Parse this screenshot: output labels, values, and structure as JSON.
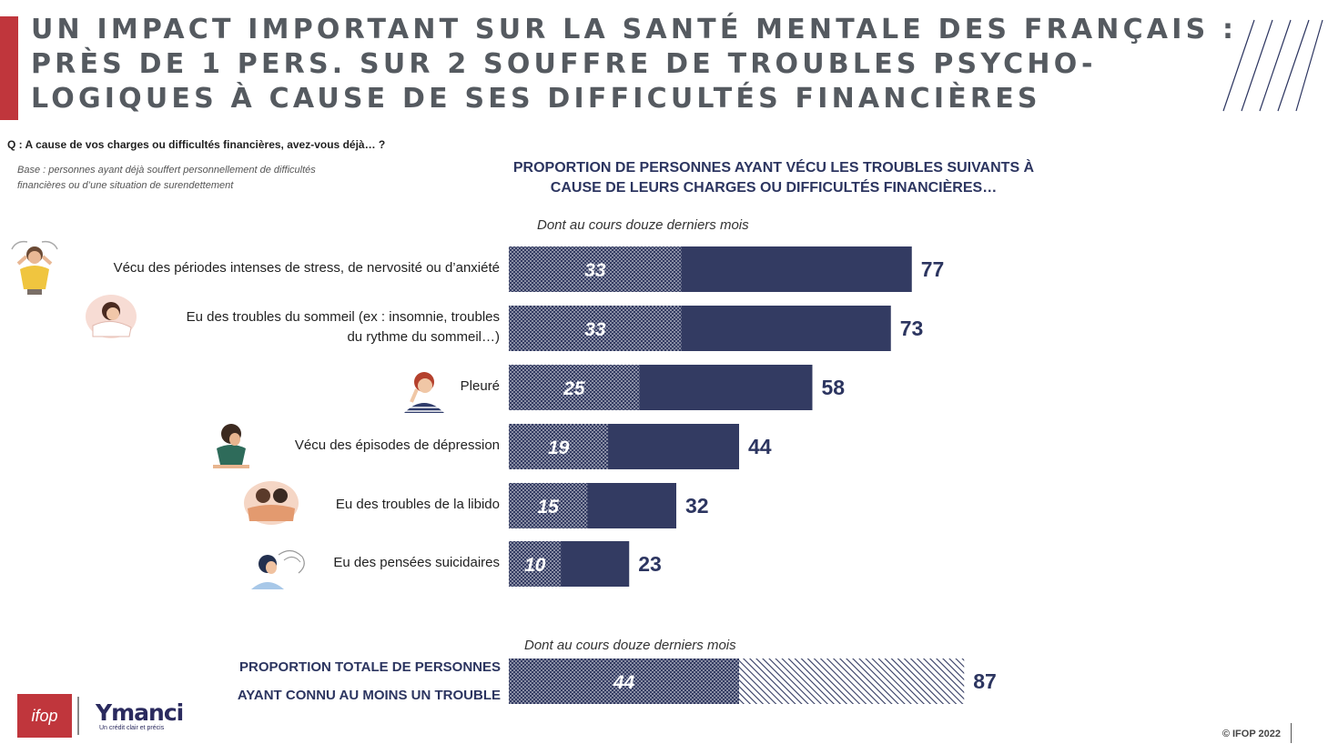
{
  "title": {
    "lines": [
      "UN IMPACT IMPORTANT SUR LA SANTÉ MENTALE DES FRANÇAIS :",
      "PRÈS DE 1 PERS. SUR 2 SOUFFRE DE TROUBLES PSYCHO-",
      "LOGIQUES À CAUSE DE SES DIFFICULTÉS FINANCIÈRES"
    ]
  },
  "question": "Q : A cause de vos charges ou difficultés financières, avez-vous déjà… ?",
  "base": {
    "line1": "Base : personnes ayant déjà souffert personnellement de difficultés",
    "line2": "financières ou d’une situation de surendettement"
  },
  "sub_label_top": "Dont au cours douze derniers mois",
  "sub_label_bottom": "Dont au cours douze derniers mois",
  "total_label": {
    "line1": "PROPORTION TOTALE DE PERSONNES",
    "line2": "AYANT CONNU AU MOINS UN TROUBLE"
  },
  "logos": {
    "ifop": "ifop",
    "ymanci": "Ymanci",
    "ymanci_tagline": "Un crédit clair et précis"
  },
  "copyright": "© IFOP 2022",
  "colors": {
    "bar": "#333b62",
    "accent_red": "#c0363c",
    "title_gray": "#555a60",
    "dark_navy": "#2c3560"
  },
  "chart_data": {
    "type": "bar",
    "orientation": "horizontal",
    "title_lines": [
      "PROPORTION DE PERSONNES AYANT VÉCU LES TROUBLES SUIVANTS À",
      "CAUSE DE LEURS CHARGES OU DIFFICULTÉS FINANCIÈRES…"
    ],
    "categories": [
      {
        "lines": [
          "Vécu des périodes intenses de stress, de nervosité ou d’anxiété"
        ],
        "icon": "stressed-person-icon"
      },
      {
        "lines": [
          "Eu des troubles du sommeil (ex : insomnie, troubles",
          "du rythme du sommeil…)"
        ],
        "icon": "sleeping-person-icon"
      },
      {
        "lines": [
          "Pleuré"
        ],
        "icon": "crying-person-icon"
      },
      {
        "lines": [
          "Vécu des épisodes de dépression"
        ],
        "icon": "depressed-person-icon"
      },
      {
        "lines": [
          "Eu des troubles de la libido"
        ],
        "icon": "couple-in-bed-icon"
      },
      {
        "lines": [
          "Eu des pensées suicidaires"
        ],
        "icon": "troubled-thoughts-icon"
      }
    ],
    "series": [
      {
        "name": "Total",
        "values": [
          77,
          73,
          58,
          44,
          32,
          23
        ]
      },
      {
        "name": "Dont au cours douze derniers mois",
        "values": [
          33,
          33,
          25,
          19,
          15,
          10
        ]
      }
    ],
    "total": {
      "value": 87,
      "last_12_months": 44
    },
    "xlim": [
      0,
      100
    ],
    "grid": false,
    "legend": "none"
  }
}
